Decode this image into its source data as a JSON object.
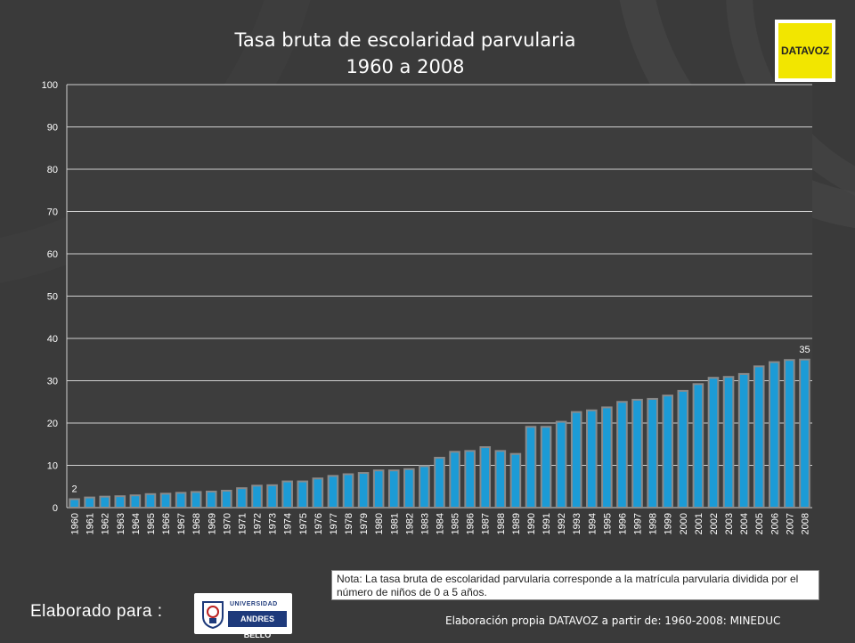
{
  "chart_data": {
    "type": "bar",
    "title": "Tasa bruta de escolaridad parvularia",
    "subtitle": "1960 a 2008",
    "xlabel": "",
    "ylabel": "",
    "ylim": [
      0,
      100
    ],
    "yticks": [
      0,
      10,
      20,
      30,
      40,
      50,
      60,
      70,
      80,
      90,
      100
    ],
    "grid": true,
    "categories": [
      "1960",
      "1961",
      "1962",
      "1963",
      "1964",
      "1965",
      "1966",
      "1967",
      "1968",
      "1969",
      "1970",
      "1971",
      "1972",
      "1973",
      "1974",
      "1975",
      "1976",
      "1977",
      "1978",
      "1979",
      "1980",
      "1981",
      "1982",
      "1983",
      "1984",
      "1985",
      "1986",
      "1987",
      "1988",
      "1989",
      "1990",
      "1991",
      "1992",
      "1993",
      "1994",
      "1995",
      "1996",
      "1997",
      "1998",
      "1999",
      "2000",
      "2001",
      "2002",
      "2003",
      "2004",
      "2005",
      "2006",
      "2007",
      "2008"
    ],
    "values": [
      2.0,
      2.4,
      2.6,
      2.7,
      2.9,
      3.2,
      3.3,
      3.5,
      3.7,
      3.8,
      4.0,
      4.6,
      5.2,
      5.3,
      6.2,
      6.2,
      6.9,
      7.5,
      7.9,
      8.2,
      8.8,
      8.8,
      9.1,
      9.8,
      11.8,
      13.2,
      13.4,
      14.3,
      13.4,
      12.7,
      19.1,
      19.1,
      20.3,
      22.6,
      23.0,
      23.7,
      25.0,
      25.5,
      25.7,
      26.5,
      27.6,
      29.2,
      30.7,
      30.9,
      31.6,
      33.4,
      34.4,
      34.9,
      35.0
    ],
    "data_labels": [
      {
        "index": 0,
        "text": "2"
      },
      {
        "index": 48,
        "text": "35"
      }
    ],
    "colors": {
      "bar": "#1c9bd6",
      "bar_edge": "#8a8a8a",
      "plot_bg": "#3d3d3d",
      "grid": "#d0d0d0",
      "text": "#ffffff"
    }
  },
  "logo": {
    "text": "DATAVOZ",
    "bg": "#f2e600"
  },
  "note": "Nota: La tasa bruta de escolaridad parvularia corresponde a la matrícula parvularia dividida por el número de niños de 0 a 5 años.",
  "footer": {
    "elaborado": "Elaborado para :",
    "university_top": "UNIVERSIDAD",
    "university_name": "ANDRES BELLO",
    "source": "Elaboración propia DATAVOZ a partir de: 1960-2008: MINEDUC"
  }
}
